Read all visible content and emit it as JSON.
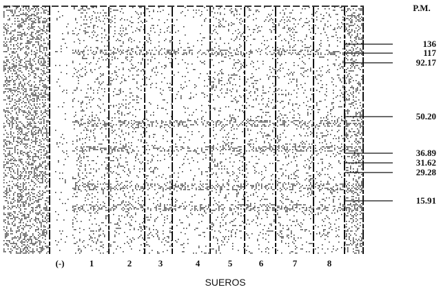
{
  "header": {
    "title": "P.M."
  },
  "markers": [
    "136",
    "117",
    "92.17",
    "50.20",
    "36.89",
    "31.62",
    "29.28",
    "15.91"
  ],
  "lanes": [
    "(-)",
    "1",
    "2",
    "3",
    "4",
    "5",
    "6",
    "7",
    "8"
  ],
  "footer": {
    "caption": "SUEROS"
  }
}
